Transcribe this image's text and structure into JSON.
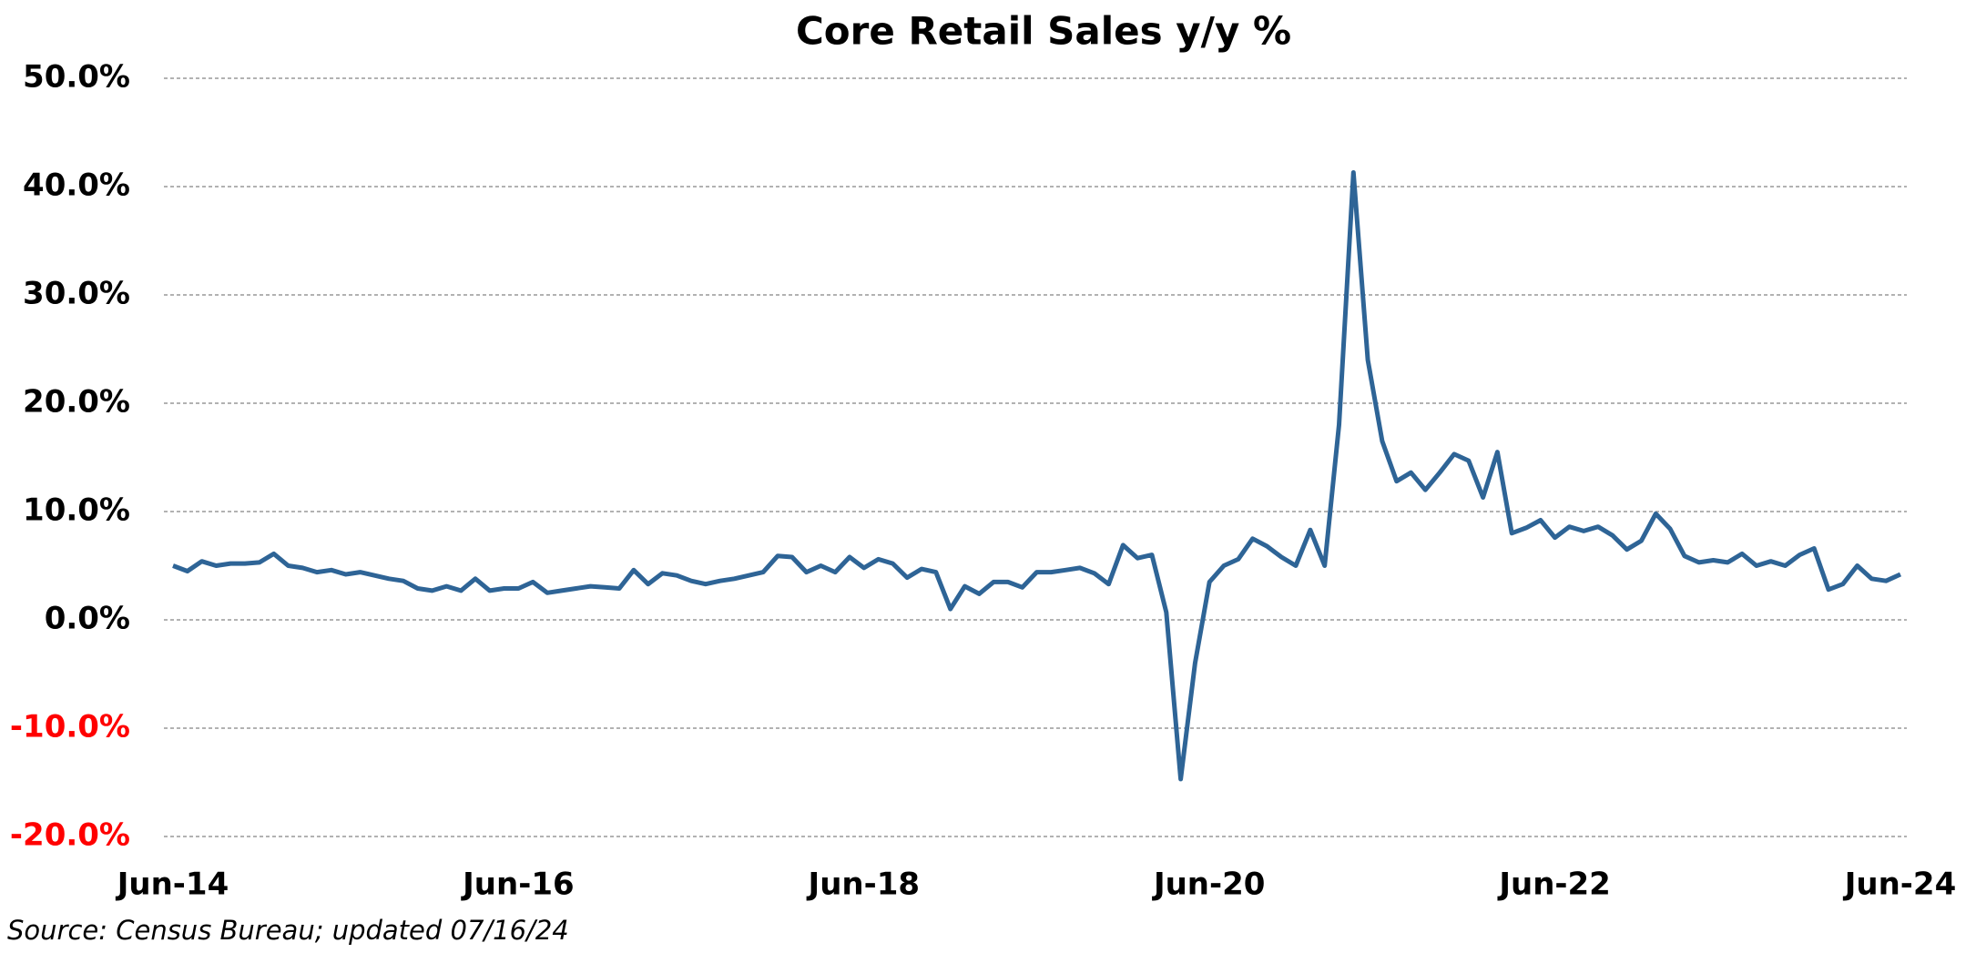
{
  "chart_data": {
    "type": "line",
    "title": "Core Retail Sales y/y %",
    "source": "Source:  Census Bureau;  updated  07/16/24",
    "categories": [
      "Jun-14",
      null,
      null,
      null,
      null,
      null,
      null,
      null,
      null,
      null,
      null,
      null,
      null,
      null,
      null,
      null,
      null,
      null,
      null,
      null,
      null,
      null,
      null,
      null,
      "Jun-16",
      null,
      null,
      null,
      null,
      null,
      null,
      null,
      null,
      null,
      null,
      null,
      null,
      null,
      null,
      null,
      null,
      null,
      null,
      null,
      null,
      null,
      null,
      null,
      "Jun-18",
      null,
      null,
      null,
      null,
      null,
      null,
      null,
      null,
      null,
      null,
      null,
      null,
      null,
      null,
      null,
      null,
      null,
      null,
      null,
      null,
      null,
      null,
      null,
      "Jun-20",
      null,
      null,
      null,
      null,
      null,
      null,
      null,
      null,
      null,
      null,
      null,
      null,
      null,
      null,
      null,
      null,
      null,
      null,
      null,
      null,
      null,
      null,
      null,
      "Jun-22",
      null,
      null,
      null,
      null,
      null,
      null,
      null,
      null,
      null,
      null,
      null,
      null,
      null,
      null,
      null,
      null,
      null,
      null,
      null,
      null,
      null,
      null,
      null,
      "Jun-24"
    ],
    "series": [
      {
        "name": "Core Retail Sales y/y %",
        "color": "#2e6496",
        "values": [
          5.0,
          4.5,
          5.4,
          5.0,
          5.2,
          5.2,
          5.3,
          6.1,
          5.0,
          4.8,
          4.4,
          4.6,
          4.2,
          4.4,
          4.1,
          3.8,
          3.6,
          2.9,
          2.7,
          3.1,
          2.7,
          3.8,
          2.7,
          2.9,
          2.9,
          3.5,
          2.5,
          2.7,
          2.9,
          3.1,
          3.0,
          2.9,
          4.6,
          3.3,
          4.3,
          4.1,
          3.6,
          3.3,
          3.6,
          3.8,
          4.1,
          4.4,
          5.9,
          5.8,
          4.4,
          5.0,
          4.4,
          5.8,
          4.8,
          5.6,
          5.2,
          3.9,
          4.7,
          4.4,
          1.0,
          3.1,
          2.4,
          3.5,
          3.5,
          3.0,
          4.4,
          4.4,
          4.6,
          4.8,
          4.3,
          3.3,
          6.9,
          5.7,
          6.0,
          0.7,
          -14.7,
          -4.0,
          3.5,
          5.0,
          5.6,
          7.5,
          6.8,
          5.8,
          5.0,
          8.3,
          5.0,
          18.0,
          41.3,
          24.0,
          16.5,
          12.8,
          13.6,
          12.0,
          13.6,
          15.3,
          14.7,
          11.3,
          15.5,
          8.0,
          8.5,
          9.2,
          7.6,
          8.6,
          8.2,
          8.6,
          7.8,
          6.5,
          7.3,
          9.8,
          8.4,
          5.9,
          5.3,
          5.5,
          5.3,
          6.1,
          5.0,
          5.4,
          5.0,
          6.0,
          6.6,
          2.8,
          3.3,
          5.0,
          3.8,
          3.6,
          4.2
        ]
      }
    ],
    "ylim": [
      -20,
      50
    ],
    "yticks": [
      {
        "value": -20,
        "label": "-20.0%"
      },
      {
        "value": -10,
        "label": "-10.0%"
      },
      {
        "value": 0,
        "label": "0.0%"
      },
      {
        "value": 10,
        "label": "10.0%"
      },
      {
        "value": 20,
        "label": "20.0%"
      },
      {
        "value": 30,
        "label": "30.0%"
      },
      {
        "value": 40,
        "label": "40.0%"
      },
      {
        "value": 50,
        "label": "50.0%"
      }
    ],
    "grid": true,
    "negative_tick_color": "#ff0000"
  }
}
